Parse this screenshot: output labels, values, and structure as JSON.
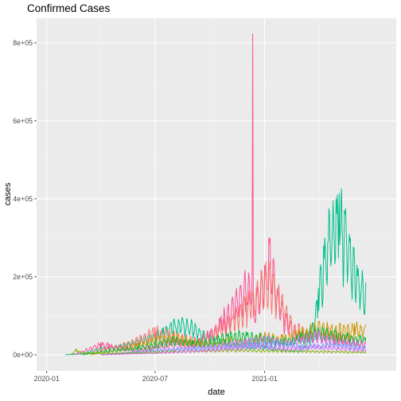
{
  "chart_data": {
    "type": "line",
    "title": "Confirmed Cases",
    "xlabel": "date",
    "ylabel": "cases",
    "xlim": [
      "2019-12-15",
      "2021-08-10"
    ],
    "ylim": [
      -41000,
      863000
    ],
    "x_ticks": [
      {
        "value": "2020-01-01",
        "label": "2020-01"
      },
      {
        "value": "2020-07-01",
        "label": "2020-07"
      },
      {
        "value": "2021-01-01",
        "label": "2021-01"
      }
    ],
    "y_ticks": [
      {
        "value": 0,
        "label": "0e+00"
      },
      {
        "value": 200000,
        "label": "2e+05"
      },
      {
        "value": 400000,
        "label": "4e+05"
      },
      {
        "value": 600000,
        "label": "6e+05"
      },
      {
        "value": 800000,
        "label": "8e+05"
      }
    ],
    "grid": true,
    "legend": "none",
    "colors": {
      "panel": "#EBEBEB",
      "grid_major": "#FFFFFF",
      "grid_minor": "#F5F5F5",
      "pink": "#FF4E96",
      "red": "#F8766D",
      "green": "#00BA38",
      "teal": "#00C08B",
      "orange": "#CD9600",
      "purple": "#C77CFF",
      "magenta": "#E76BF3",
      "blue": "#619CFF",
      "olive": "#7CAE00"
    },
    "series": [
      {
        "color": "#00C08B",
        "points": [
          [
            "2020-02-01",
            0
          ],
          [
            "2020-03-01",
            3000
          ],
          [
            "2020-04-01",
            20000
          ],
          [
            "2020-05-01",
            25000
          ],
          [
            "2020-06-01",
            40000
          ],
          [
            "2020-07-01",
            55000
          ],
          [
            "2020-07-15",
            70000
          ],
          [
            "2020-08-01",
            90000
          ],
          [
            "2020-08-15",
            95000
          ],
          [
            "2020-09-01",
            85000
          ],
          [
            "2020-10-01",
            50000
          ],
          [
            "2020-11-01",
            35000
          ],
          [
            "2020-12-01",
            30000
          ],
          [
            "2021-01-01",
            25000
          ],
          [
            "2021-02-01",
            15000
          ],
          [
            "2021-03-01",
            12000
          ],
          [
            "2021-03-10",
            25000
          ],
          [
            "2021-03-20",
            60000
          ],
          [
            "2021-04-01",
            170000
          ],
          [
            "2021-04-10",
            280000
          ],
          [
            "2021-04-20",
            360000
          ],
          [
            "2021-05-01",
            400000
          ],
          [
            "2021-05-06",
            414000
          ],
          [
            "2021-05-15",
            370000
          ],
          [
            "2021-05-25",
            300000
          ],
          [
            "2021-06-05",
            230000
          ],
          [
            "2021-06-15",
            195000
          ],
          [
            "2021-06-20",
            185000
          ]
        ]
      },
      {
        "color": "#FF4E96",
        "points": [
          [
            "2020-02-15",
            0
          ],
          [
            "2020-03-15",
            20000
          ],
          [
            "2020-04-01",
            32000
          ],
          [
            "2020-04-15",
            28000
          ],
          [
            "2020-05-01",
            22000
          ],
          [
            "2020-06-01",
            15000
          ],
          [
            "2020-07-01",
            25000
          ],
          [
            "2020-08-01",
            40000
          ],
          [
            "2020-09-01",
            35000
          ],
          [
            "2020-10-01",
            60000
          ],
          [
            "2020-10-20",
            100000
          ],
          [
            "2020-11-01",
            130000
          ],
          [
            "2020-11-15",
            170000
          ],
          [
            "2020-11-28",
            200000
          ],
          [
            "2020-12-05",
            210000
          ],
          [
            "2020-12-11",
            220000
          ],
          [
            "2020-12-12",
            823000
          ],
          [
            "2020-12-13",
            100000
          ],
          [
            "2020-12-20",
            190000
          ],
          [
            "2021-01-01",
            230000
          ],
          [
            "2021-01-08",
            300000
          ],
          [
            "2021-01-15",
            240000
          ],
          [
            "2021-02-01",
            120000
          ],
          [
            "2021-02-15",
            80000
          ],
          [
            "2021-03-01",
            60000
          ],
          [
            "2021-04-01",
            60000
          ],
          [
            "2021-05-01",
            50000
          ],
          [
            "2021-06-20",
            30000
          ]
        ]
      },
      {
        "color": "#F8766D",
        "points": [
          [
            "2020-03-01",
            0
          ],
          [
            "2020-04-01",
            15000
          ],
          [
            "2020-05-01",
            25000
          ],
          [
            "2020-06-01",
            45000
          ],
          [
            "2020-07-01",
            70000
          ],
          [
            "2020-07-20",
            65000
          ],
          [
            "2020-08-15",
            50000
          ],
          [
            "2020-09-15",
            40000
          ],
          [
            "2020-10-15",
            70000
          ],
          [
            "2020-11-10",
            110000
          ],
          [
            "2020-12-01",
            150000
          ],
          [
            "2020-12-20",
            190000
          ],
          [
            "2021-01-10",
            240000
          ],
          [
            "2021-01-25",
            180000
          ],
          [
            "2021-02-15",
            90000
          ],
          [
            "2021-03-15",
            60000
          ],
          [
            "2021-04-15",
            70000
          ],
          [
            "2021-05-15",
            50000
          ],
          [
            "2021-06-20",
            35000
          ]
        ]
      },
      {
        "color": "#CD9600",
        "points": [
          [
            "2020-03-15",
            0
          ],
          [
            "2020-05-01",
            15000
          ],
          [
            "2020-06-01",
            30000
          ],
          [
            "2020-07-01",
            45000
          ],
          [
            "2020-08-01",
            55000
          ],
          [
            "2020-09-01",
            40000
          ],
          [
            "2020-10-01",
            30000
          ],
          [
            "2020-11-01",
            45000
          ],
          [
            "2020-12-01",
            40000
          ],
          [
            "2021-01-01",
            55000
          ],
          [
            "2021-02-01",
            50000
          ],
          [
            "2021-03-01",
            65000
          ],
          [
            "2021-04-01",
            85000
          ],
          [
            "2021-05-01",
            75000
          ],
          [
            "2021-06-01",
            80000
          ],
          [
            "2021-06-20",
            78000
          ]
        ]
      },
      {
        "color": "#00BA38",
        "points": [
          [
            "2020-03-01",
            0
          ],
          [
            "2020-04-01",
            10000
          ],
          [
            "2020-05-01",
            15000
          ],
          [
            "2020-06-01",
            20000
          ],
          [
            "2020-07-01",
            30000
          ],
          [
            "2020-08-01",
            45000
          ],
          [
            "2020-09-01",
            35000
          ],
          [
            "2020-10-01",
            40000
          ],
          [
            "2020-11-01",
            55000
          ],
          [
            "2020-12-01",
            60000
          ],
          [
            "2021-01-01",
            50000
          ],
          [
            "2021-02-01",
            40000
          ],
          [
            "2021-03-01",
            55000
          ],
          [
            "2021-04-01",
            70000
          ],
          [
            "2021-05-01",
            60000
          ],
          [
            "2021-06-20",
            45000
          ]
        ]
      },
      {
        "color": "#C77CFF",
        "points": [
          [
            "2020-04-01",
            0
          ],
          [
            "2020-06-01",
            10000
          ],
          [
            "2020-08-01",
            20000
          ],
          [
            "2020-10-01",
            25000
          ],
          [
            "2020-12-01",
            40000
          ],
          [
            "2021-01-01",
            50000
          ],
          [
            "2021-02-01",
            35000
          ],
          [
            "2021-03-01",
            45000
          ],
          [
            "2021-04-01",
            60000
          ],
          [
            "2021-05-01",
            40000
          ],
          [
            "2021-06-20",
            30000
          ]
        ]
      },
      {
        "color": "#619CFF",
        "points": [
          [
            "2020-04-01",
            0
          ],
          [
            "2020-06-01",
            8000
          ],
          [
            "2020-08-01",
            15000
          ],
          [
            "2020-10-01",
            20000
          ],
          [
            "2020-12-01",
            30000
          ],
          [
            "2021-01-15",
            35000
          ],
          [
            "2021-03-01",
            25000
          ],
          [
            "2021-05-01",
            30000
          ],
          [
            "2021-06-20",
            20000
          ]
        ]
      },
      {
        "color": "#7CAE00",
        "points": [
          [
            "2020-02-10",
            0
          ],
          [
            "2020-02-20",
            15000
          ],
          [
            "2020-03-01",
            5000
          ],
          [
            "2020-05-01",
            5000
          ],
          [
            "2020-08-01",
            10000
          ],
          [
            "2020-11-01",
            15000
          ],
          [
            "2021-02-01",
            12000
          ],
          [
            "2021-06-20",
            8000
          ]
        ]
      },
      {
        "color": "#E76BF3",
        "points": [
          [
            "2020-04-01",
            0
          ],
          [
            "2020-07-01",
            5000
          ],
          [
            "2020-10-01",
            15000
          ],
          [
            "2020-12-15",
            30000
          ],
          [
            "2021-02-01",
            20000
          ],
          [
            "2021-04-01",
            25000
          ],
          [
            "2021-06-20",
            15000
          ]
        ]
      }
    ]
  }
}
